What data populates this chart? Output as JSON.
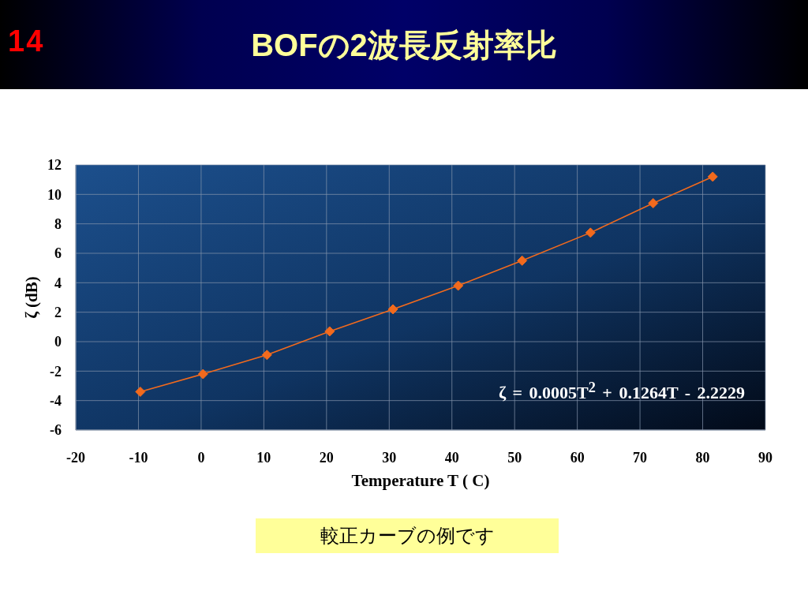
{
  "chart_data": {
    "type": "line",
    "title": "BOFの2波長反射率比",
    "xlabel": "Temperature T ( C)",
    "ylabel": "ζ (dB)",
    "annotations": [
      "14",
      "ζ = 0.0005T$^{2}$ + 0.1264T - 2.2229",
      "較正カーブの例です"
    ],
    "x": [
      -9.7,
      0.3,
      10.5,
      20.5,
      30.6,
      41.0,
      51.2,
      62.1,
      72.1,
      81.6
    ],
    "values": [
      -3.4,
      -2.2,
      -0.9,
      0.7,
      2.2,
      3.8,
      5.5,
      7.4,
      9.4,
      11.2
    ],
    "color": "#f26a1d",
    "marker": "diamond",
    "line_style": "solid",
    "xlim": [
      -20,
      90
    ],
    "xticks": [
      -20,
      -10,
      0,
      10,
      20,
      30,
      40,
      50,
      60,
      70,
      80,
      90
    ],
    "ylim": [
      -6,
      12
    ],
    "yticks": [
      -6,
      -4,
      -2,
      0,
      2,
      4,
      6,
      8,
      10,
      12
    ],
    "grid": true
  }
}
